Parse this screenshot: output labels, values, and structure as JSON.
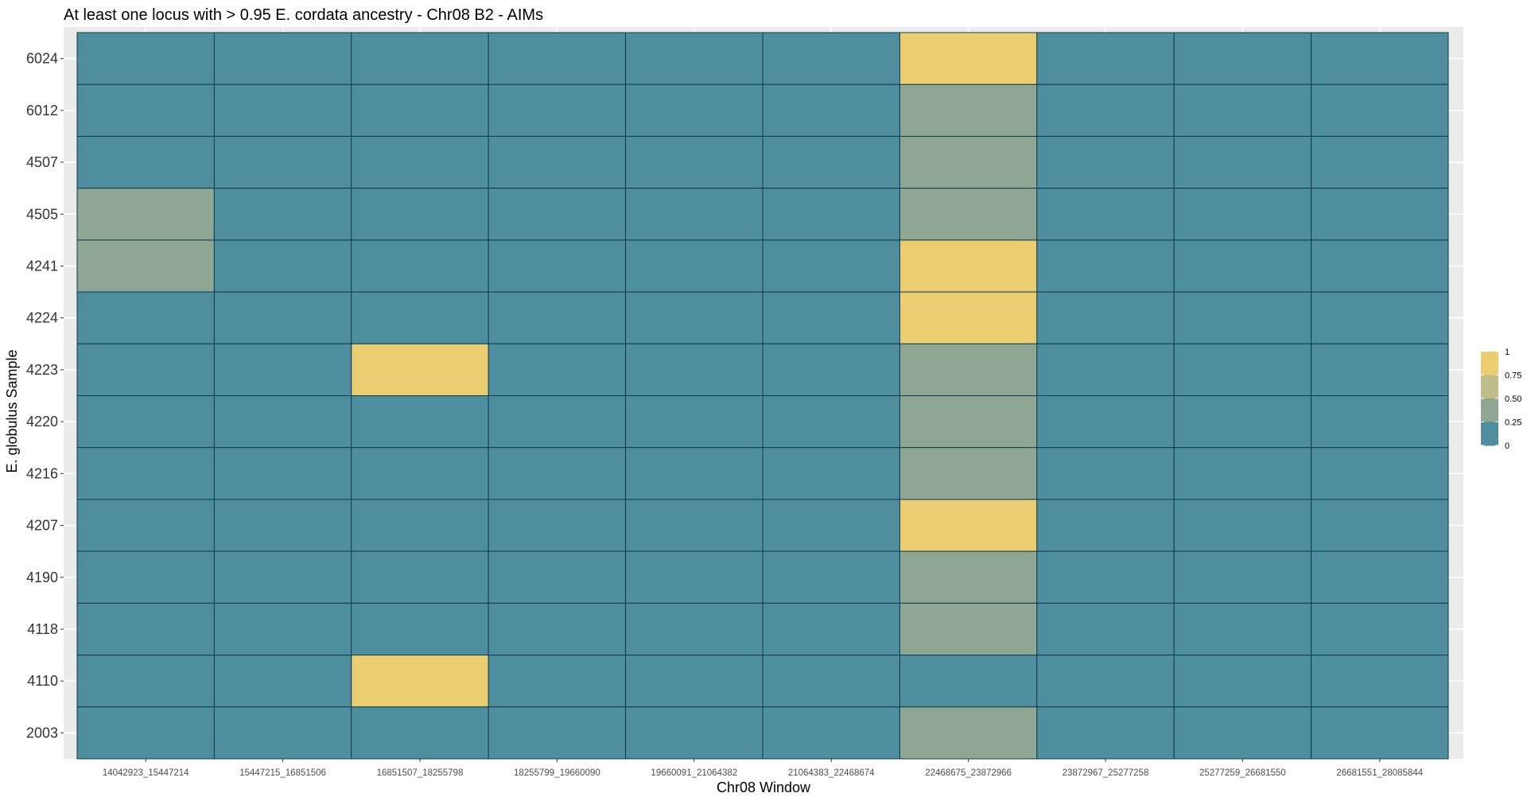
{
  "chart_data": {
    "type": "heatmap",
    "title": "At least one locus with > 0.95 E. cordata ancestry - Chr08 B2 - AIMs",
    "xlabel": "Chr08 Window",
    "ylabel": "E. globulus Sample",
    "x": [
      "14042923_15447214",
      "15447215_16851506",
      "16851507_18255798",
      "18255799_19660090",
      "19660091_21064382",
      "21064383_22468674",
      "22468675_23872966",
      "23872967_25277258",
      "25277259_26681550",
      "26681551_28085844"
    ],
    "y": [
      "6024",
      "6012",
      "4507",
      "4505",
      "4241",
      "4224",
      "4223",
      "4220",
      "4216",
      "4207",
      "4190",
      "4118",
      "4110",
      "2003"
    ],
    "values": [
      [
        0,
        0,
        0,
        0,
        0,
        0,
        1,
        0,
        0,
        0
      ],
      [
        0,
        0,
        0,
        0,
        0,
        0,
        0.5,
        0,
        0,
        0
      ],
      [
        0,
        0,
        0,
        0,
        0,
        0,
        0.5,
        0,
        0,
        0
      ],
      [
        0.5,
        0,
        0,
        0,
        0,
        0,
        0.5,
        0,
        0,
        0
      ],
      [
        0.5,
        0,
        0,
        0,
        0,
        0,
        1,
        0,
        0,
        0
      ],
      [
        0,
        0,
        0,
        0,
        0,
        0,
        1,
        0,
        0,
        0
      ],
      [
        0,
        0,
        1,
        0,
        0,
        0,
        0.5,
        0,
        0,
        0
      ],
      [
        0,
        0,
        0,
        0,
        0,
        0,
        0.5,
        0,
        0,
        0
      ],
      [
        0,
        0,
        0,
        0,
        0,
        0,
        0.5,
        0,
        0,
        0
      ],
      [
        0,
        0,
        0,
        0,
        0,
        0,
        1,
        0,
        0,
        0
      ],
      [
        0,
        0,
        0,
        0,
        0,
        0,
        0.5,
        0,
        0,
        0
      ],
      [
        0,
        0,
        0,
        0,
        0,
        0,
        0.5,
        0,
        0,
        0
      ],
      [
        0,
        0,
        1,
        0,
        0,
        0,
        0,
        0,
        0,
        0
      ],
      [
        0,
        0,
        0,
        0,
        0,
        0,
        0.5,
        0,
        0,
        0
      ]
    ],
    "legend": {
      "position": "right",
      "ticks": [
        "1",
        "0.75",
        "0.50",
        "0.25",
        "0"
      ],
      "colors": [
        "#ebce71",
        "#bfbe8a",
        "#8fa693",
        "#4f8e9e"
      ]
    },
    "colors": {
      "low": "#4f8e9e",
      "mid": "#8fa693",
      "high": "#ebce71",
      "border": "#0d3d4d",
      "panel": "#ebebeb",
      "grid": "#ffffff"
    },
    "grid": true
  }
}
